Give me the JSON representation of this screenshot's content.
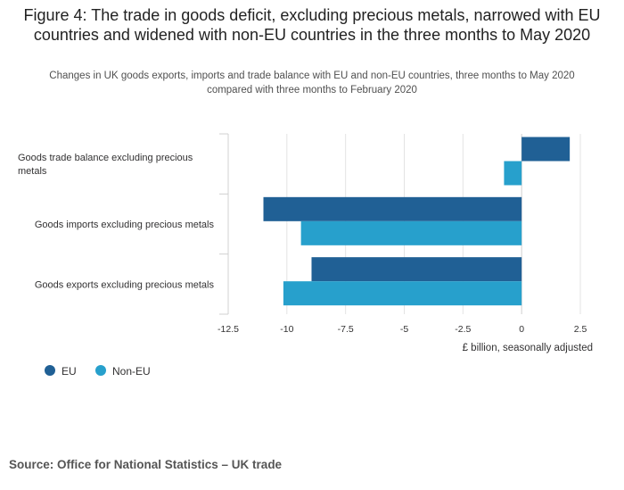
{
  "title": "Figure 4: The trade in goods deficit, excluding precious metals, narrowed with EU countries and widened with non-EU countries in the three months to May 2020",
  "subtitle": "Changes in UK goods exports, imports and trade balance with EU and non-EU countries, three months to May 2020 compared with three months to February 2020",
  "source": "Source: Office for National Statistics – UK trade",
  "colors": {
    "eu": "#206095",
    "non_eu": "#27a0cc"
  },
  "chart_data": {
    "type": "bar",
    "orientation": "horizontal",
    "title": "Figure 4: The trade in goods deficit, excluding precious metals, narrowed with EU countries and widened with non-EU countries in the three months to May 2020",
    "xlabel": "£ billion, seasonally adjusted",
    "ylabel": "",
    "xlim": [
      -12.5,
      2.5
    ],
    "xticks": [
      -12.5,
      -10,
      -7.5,
      -5,
      -2.5,
      0,
      2.5
    ],
    "xtick_labels": [
      "-12.5",
      "-10",
      "-7.5",
      "-5",
      "-2.5",
      "0",
      "2.5"
    ],
    "grid": true,
    "legend_position": "bottom-left",
    "categories": [
      [
        "Goods trade balance excluding precious",
        "metals"
      ],
      [
        "Goods imports excluding precious metals"
      ],
      [
        "Goods exports excluding precious metals"
      ]
    ],
    "series": [
      {
        "name": "EU",
        "color": "#206095",
        "values": [
          2.05,
          -11.0,
          -8.95
        ]
      },
      {
        "name": "Non-EU",
        "color": "#27a0cc",
        "values": [
          -0.75,
          -9.4,
          -10.15
        ]
      }
    ]
  }
}
